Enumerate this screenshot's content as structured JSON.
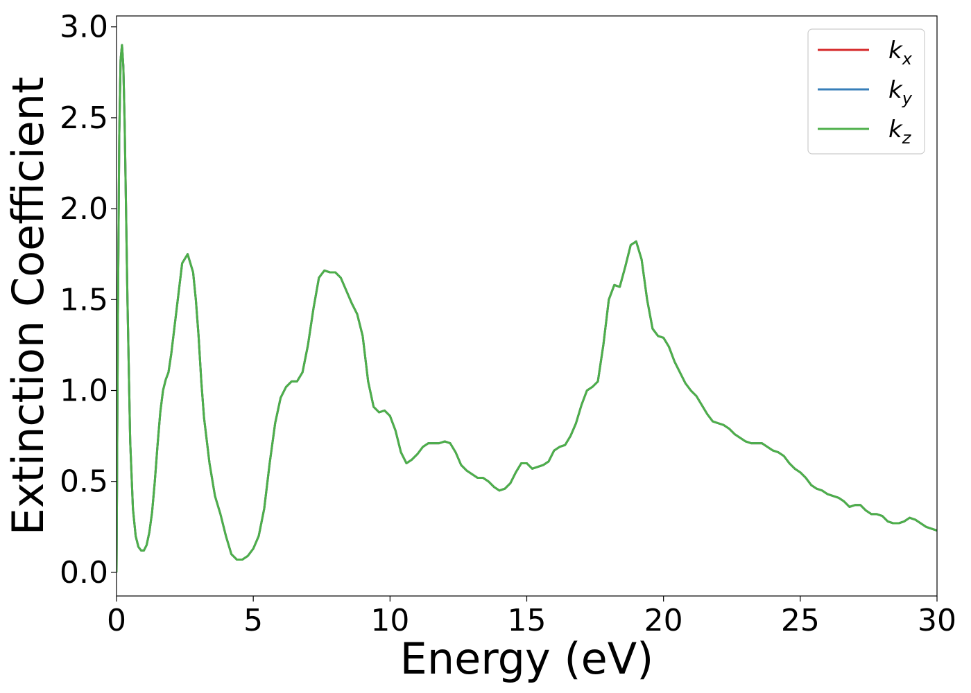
{
  "chart_data": {
    "type": "line",
    "xlabel": "Energy (eV)",
    "ylabel": "Extinction Coefficient",
    "xlim": [
      0,
      30
    ],
    "ylim": [
      -0.13,
      3.06
    ],
    "xticks": [
      0,
      5,
      10,
      15,
      20,
      25,
      30
    ],
    "xtick_labels": [
      "0",
      "5",
      "10",
      "15",
      "20",
      "25",
      "30"
    ],
    "yticks": [
      0.0,
      0.5,
      1.0,
      1.5,
      2.0,
      2.5,
      3.0
    ],
    "ytick_labels": [
      "0.0",
      "0.5",
      "1.0",
      "1.5",
      "2.0",
      "2.5",
      "3.0"
    ],
    "grid": false,
    "legend_position": "top-right",
    "x": [
      0.0,
      0.05,
      0.1,
      0.15,
      0.2,
      0.25,
      0.3,
      0.4,
      0.5,
      0.6,
      0.7,
      0.8,
      0.9,
      1.0,
      1.1,
      1.2,
      1.3,
      1.4,
      1.5,
      1.6,
      1.7,
      1.8,
      1.9,
      2.0,
      2.2,
      2.4,
      2.6,
      2.8,
      2.9,
      3.0,
      3.1,
      3.2,
      3.4,
      3.6,
      3.8,
      4.0,
      4.2,
      4.4,
      4.6,
      4.8,
      5.0,
      5.2,
      5.4,
      5.6,
      5.8,
      6.0,
      6.2,
      6.4,
      6.6,
      6.8,
      7.0,
      7.2,
      7.4,
      7.6,
      7.8,
      8.0,
      8.2,
      8.4,
      8.6,
      8.8,
      9.0,
      9.2,
      9.4,
      9.6,
      9.8,
      10.0,
      10.2,
      10.4,
      10.6,
      10.8,
      11.0,
      11.2,
      11.4,
      11.6,
      11.8,
      12.0,
      12.2,
      12.4,
      12.6,
      12.8,
      13.0,
      13.2,
      13.4,
      13.6,
      13.8,
      14.0,
      14.2,
      14.4,
      14.6,
      14.8,
      15.0,
      15.2,
      15.4,
      15.6,
      15.8,
      16.0,
      16.2,
      16.4,
      16.6,
      16.8,
      17.0,
      17.2,
      17.4,
      17.6,
      17.8,
      18.0,
      18.2,
      18.4,
      18.6,
      18.8,
      19.0,
      19.2,
      19.4,
      19.6,
      19.8,
      20.0,
      20.2,
      20.4,
      20.6,
      20.8,
      21.0,
      21.2,
      21.4,
      21.6,
      21.8,
      22.0,
      22.2,
      22.4,
      22.6,
      22.8,
      23.0,
      23.2,
      23.4,
      23.6,
      23.8,
      24.0,
      24.2,
      24.4,
      24.6,
      24.8,
      25.0,
      25.2,
      25.4,
      25.6,
      25.8,
      26.0,
      26.2,
      26.4,
      26.6,
      26.8,
      27.0,
      27.2,
      27.4,
      27.6,
      27.8,
      28.0,
      28.2,
      28.4,
      28.6,
      28.8,
      29.0,
      29.2,
      29.4,
      29.6,
      29.8,
      30.0
    ],
    "series": [
      {
        "name": "k_x",
        "label_base": "k",
        "label_sub": "x",
        "color": "#d62728",
        "values": [
          0.0,
          1.4,
          2.4,
          2.82,
          2.9,
          2.78,
          2.45,
          1.5,
          0.72,
          0.35,
          0.2,
          0.14,
          0.12,
          0.12,
          0.15,
          0.22,
          0.33,
          0.5,
          0.7,
          0.88,
          1.0,
          1.06,
          1.1,
          1.2,
          1.45,
          1.7,
          1.75,
          1.65,
          1.5,
          1.3,
          1.05,
          0.85,
          0.6,
          0.42,
          0.32,
          0.2,
          0.1,
          0.07,
          0.07,
          0.09,
          0.13,
          0.2,
          0.35,
          0.6,
          0.82,
          0.96,
          1.02,
          1.05,
          1.05,
          1.1,
          1.25,
          1.45,
          1.62,
          1.66,
          1.65,
          1.65,
          1.62,
          1.55,
          1.48,
          1.42,
          1.3,
          1.05,
          0.91,
          0.88,
          0.89,
          0.86,
          0.78,
          0.66,
          0.6,
          0.62,
          0.65,
          0.69,
          0.71,
          0.71,
          0.71,
          0.72,
          0.71,
          0.66,
          0.59,
          0.56,
          0.54,
          0.52,
          0.52,
          0.5,
          0.47,
          0.45,
          0.46,
          0.49,
          0.55,
          0.6,
          0.6,
          0.57,
          0.58,
          0.59,
          0.61,
          0.67,
          0.69,
          0.7,
          0.75,
          0.82,
          0.92,
          1.0,
          1.02,
          1.05,
          1.25,
          1.5,
          1.58,
          1.57,
          1.68,
          1.8,
          1.82,
          1.72,
          1.5,
          1.34,
          1.3,
          1.29,
          1.24,
          1.16,
          1.1,
          1.04,
          1.0,
          0.97,
          0.92,
          0.87,
          0.83,
          0.82,
          0.81,
          0.79,
          0.76,
          0.74,
          0.72,
          0.71,
          0.71,
          0.71,
          0.69,
          0.67,
          0.66,
          0.64,
          0.6,
          0.57,
          0.55,
          0.52,
          0.48,
          0.46,
          0.45,
          0.43,
          0.42,
          0.41,
          0.39,
          0.36,
          0.37,
          0.37,
          0.34,
          0.32,
          0.32,
          0.31,
          0.28,
          0.27,
          0.27,
          0.28,
          0.3,
          0.29,
          0.27,
          0.25,
          0.24,
          0.23
        ]
      },
      {
        "name": "k_y",
        "label_base": "k",
        "label_sub": "y",
        "color": "#377eb8",
        "values": [
          0.0,
          1.4,
          2.4,
          2.82,
          2.9,
          2.78,
          2.45,
          1.5,
          0.72,
          0.35,
          0.2,
          0.14,
          0.12,
          0.12,
          0.15,
          0.22,
          0.33,
          0.5,
          0.7,
          0.88,
          1.0,
          1.06,
          1.1,
          1.2,
          1.45,
          1.7,
          1.75,
          1.65,
          1.5,
          1.3,
          1.05,
          0.85,
          0.6,
          0.42,
          0.32,
          0.2,
          0.1,
          0.07,
          0.07,
          0.09,
          0.13,
          0.2,
          0.35,
          0.6,
          0.82,
          0.96,
          1.02,
          1.05,
          1.05,
          1.1,
          1.25,
          1.45,
          1.62,
          1.66,
          1.65,
          1.65,
          1.62,
          1.55,
          1.48,
          1.42,
          1.3,
          1.05,
          0.91,
          0.88,
          0.89,
          0.86,
          0.78,
          0.66,
          0.6,
          0.62,
          0.65,
          0.69,
          0.71,
          0.71,
          0.71,
          0.72,
          0.71,
          0.66,
          0.59,
          0.56,
          0.54,
          0.52,
          0.52,
          0.5,
          0.47,
          0.45,
          0.46,
          0.49,
          0.55,
          0.6,
          0.6,
          0.57,
          0.58,
          0.59,
          0.61,
          0.67,
          0.69,
          0.7,
          0.75,
          0.82,
          0.92,
          1.0,
          1.02,
          1.05,
          1.25,
          1.5,
          1.58,
          1.57,
          1.68,
          1.8,
          1.82,
          1.72,
          1.5,
          1.34,
          1.3,
          1.29,
          1.24,
          1.16,
          1.1,
          1.04,
          1.0,
          0.97,
          0.92,
          0.87,
          0.83,
          0.82,
          0.81,
          0.79,
          0.76,
          0.74,
          0.72,
          0.71,
          0.71,
          0.71,
          0.69,
          0.67,
          0.66,
          0.64,
          0.6,
          0.57,
          0.55,
          0.52,
          0.48,
          0.46,
          0.45,
          0.43,
          0.42,
          0.41,
          0.39,
          0.36,
          0.37,
          0.37,
          0.34,
          0.32,
          0.32,
          0.31,
          0.28,
          0.27,
          0.27,
          0.28,
          0.3,
          0.29,
          0.27,
          0.25,
          0.24,
          0.23
        ]
      },
      {
        "name": "k_z",
        "label_base": "k",
        "label_sub": "z",
        "color": "#4daf4a",
        "values": [
          0.0,
          1.4,
          2.4,
          2.82,
          2.9,
          2.78,
          2.45,
          1.5,
          0.72,
          0.35,
          0.2,
          0.14,
          0.12,
          0.12,
          0.15,
          0.22,
          0.33,
          0.5,
          0.7,
          0.88,
          1.0,
          1.06,
          1.1,
          1.2,
          1.45,
          1.7,
          1.75,
          1.65,
          1.5,
          1.3,
          1.05,
          0.85,
          0.6,
          0.42,
          0.32,
          0.2,
          0.1,
          0.07,
          0.07,
          0.09,
          0.13,
          0.2,
          0.35,
          0.6,
          0.82,
          0.96,
          1.02,
          1.05,
          1.05,
          1.1,
          1.25,
          1.45,
          1.62,
          1.66,
          1.65,
          1.65,
          1.62,
          1.55,
          1.48,
          1.42,
          1.3,
          1.05,
          0.91,
          0.88,
          0.89,
          0.86,
          0.78,
          0.66,
          0.6,
          0.62,
          0.65,
          0.69,
          0.71,
          0.71,
          0.71,
          0.72,
          0.71,
          0.66,
          0.59,
          0.56,
          0.54,
          0.52,
          0.52,
          0.5,
          0.47,
          0.45,
          0.46,
          0.49,
          0.55,
          0.6,
          0.6,
          0.57,
          0.58,
          0.59,
          0.61,
          0.67,
          0.69,
          0.7,
          0.75,
          0.82,
          0.92,
          1.0,
          1.02,
          1.05,
          1.25,
          1.5,
          1.58,
          1.57,
          1.68,
          1.8,
          1.82,
          1.72,
          1.5,
          1.34,
          1.3,
          1.29,
          1.24,
          1.16,
          1.1,
          1.04,
          1.0,
          0.97,
          0.92,
          0.87,
          0.83,
          0.82,
          0.81,
          0.79,
          0.76,
          0.74,
          0.72,
          0.71,
          0.71,
          0.71,
          0.69,
          0.67,
          0.66,
          0.64,
          0.6,
          0.57,
          0.55,
          0.52,
          0.48,
          0.46,
          0.45,
          0.43,
          0.42,
          0.41,
          0.39,
          0.36,
          0.37,
          0.37,
          0.34,
          0.32,
          0.32,
          0.31,
          0.28,
          0.27,
          0.27,
          0.28,
          0.3,
          0.29,
          0.27,
          0.25,
          0.24,
          0.23
        ]
      }
    ]
  }
}
